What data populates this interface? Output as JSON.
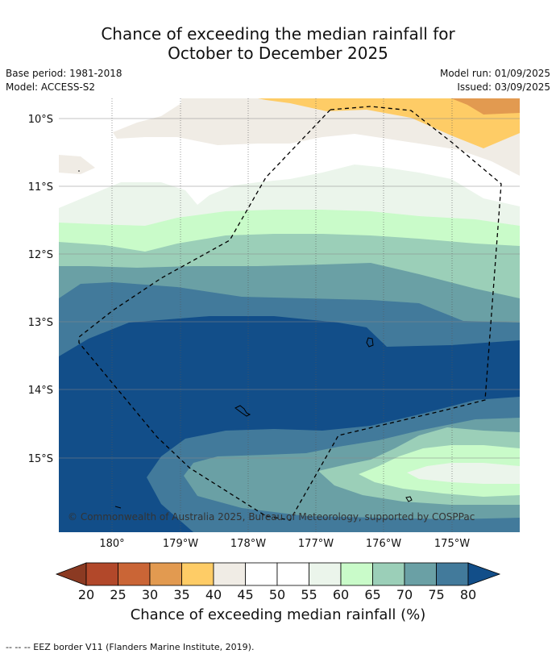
{
  "header": {
    "title_line1": "Chance of exceeding the median rainfall for",
    "title_line2": "October to December 2025"
  },
  "meta": {
    "base_period": "Base period: 1981-2018",
    "model": "Model: ACCESS-S2",
    "model_run": "Model run: 01/09/2025",
    "issued": "Issued: 03/09/2025"
  },
  "map": {
    "lat_labels": [
      "10°S",
      "11°S",
      "12°S",
      "13°S",
      "14°S",
      "15°S"
    ],
    "lon_labels": [
      "180°",
      "179°W",
      "178°W",
      "177°W",
      "176°W",
      "175°W"
    ],
    "copyright": "© Commonwealth of Australia 2025, Bureau of Meteorology, supported by COSPPac"
  },
  "colorbar": {
    "ticks": [
      "20",
      "25",
      "30",
      "35",
      "40",
      "45",
      "50",
      "55",
      "60",
      "65",
      "70",
      "75",
      "80"
    ],
    "colors": [
      "#8b3a22",
      "#b2482a",
      "#ca6536",
      "#e29a50",
      "#fecc66",
      "#f0ece5",
      "#ffffff",
      "#ffffff",
      "#ebf5eb",
      "#c9fbc9",
      "#9bcfb8",
      "#6aa0a5",
      "#427a9b",
      "#124e89"
    ],
    "label": "Chance of exceeding median rainfall (%)"
  },
  "footnote": "--  --  -- EEZ border V11 (Flanders Marine Institute, 2019)."
}
